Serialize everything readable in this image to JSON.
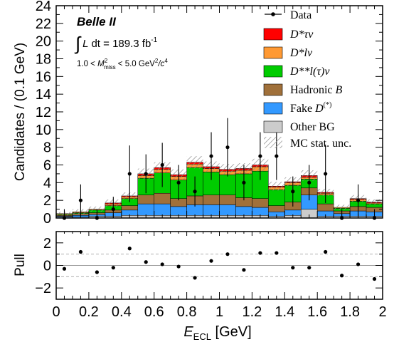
{
  "chart_data": {
    "type": "stacked_histogram_with_pull",
    "colors": {
      "dstar_tau_nu": "#ff0000",
      "dstar_l_nu": "#ff9933",
      "dstarstar_l_nu": "#00cc00",
      "hadronic_b": "#a0703a",
      "fake_d": "#3399ff",
      "other_bg": "#cccccc"
    },
    "main": {
      "ylabel": "Candidates / (0.1 GeV)",
      "ylim": [
        0,
        24
      ],
      "yticks": [
        "0",
        "2",
        "4",
        "6",
        "8",
        "10",
        "12",
        "14",
        "16",
        "18",
        "20",
        "22",
        "24"
      ],
      "bin_centers": [
        0.05,
        0.15,
        0.25,
        0.35,
        0.45,
        0.55,
        0.65,
        0.75,
        0.85,
        0.95,
        1.05,
        1.15,
        1.25,
        1.35,
        1.45,
        1.55,
        1.65,
        1.75,
        1.85,
        1.95
      ],
      "stacks": [
        {
          "key": "other_bg",
          "values": [
            0.1,
            0.1,
            0.2,
            0.2,
            0.3,
            0.3,
            0.3,
            0.3,
            0.3,
            0.3,
            0.3,
            0.3,
            0.3,
            0.2,
            0.3,
            1.0,
            0.2,
            0.2,
            0.2,
            0.2
          ]
        },
        {
          "key": "fake_d",
          "values": [
            0.1,
            0.2,
            0.2,
            0.4,
            0.6,
            1.3,
            1.3,
            1.0,
            1.2,
            1.2,
            1.2,
            1.0,
            0.9,
            0.5,
            0.6,
            1.6,
            0.6,
            0.3,
            0.6,
            0.5
          ]
        },
        {
          "key": "hadronic_b",
          "values": [
            0.1,
            0.2,
            0.2,
            0.3,
            0.5,
            1.0,
            1.2,
            0.9,
            1.0,
            1.1,
            1.1,
            1.0,
            1.0,
            0.7,
            0.9,
            0.8,
            0.8,
            0.3,
            0.5,
            0.5
          ]
        },
        {
          "key": "dstarstar_l_nu",
          "values": [
            0.1,
            0.1,
            0.3,
            0.5,
            0.8,
            1.9,
            2.3,
            2.1,
            3.2,
            2.6,
            2.3,
            2.7,
            3.1,
            1.8,
            1.9,
            1.0,
            1.0,
            0.3,
            0.6,
            0.4
          ]
        },
        {
          "key": "dstar_l_nu",
          "values": [
            0.1,
            0.1,
            0.1,
            0.2,
            0.2,
            0.3,
            0.4,
            0.4,
            0.4,
            0.4,
            0.4,
            0.4,
            0.5,
            0.3,
            0.3,
            0.2,
            0.2,
            0.1,
            0.2,
            0.1
          ]
        },
        {
          "key": "dstar_tau_nu",
          "values": [
            0.0,
            0.0,
            0.0,
            0.1,
            0.1,
            0.2,
            0.2,
            0.2,
            0.2,
            0.2,
            0.2,
            0.2,
            0.2,
            0.1,
            0.1,
            0.2,
            0.1,
            0.0,
            0.1,
            0.1
          ]
        }
      ],
      "mc_unc": [
        0.2,
        0.3,
        0.3,
        0.4,
        0.4,
        0.6,
        0.6,
        0.6,
        0.7,
        0.6,
        0.6,
        0.6,
        0.7,
        0.5,
        0.5,
        0.6,
        0.4,
        0.3,
        0.4,
        0.3
      ],
      "data_points": [
        {
          "x": 0.05,
          "y": 0,
          "err": 1
        },
        {
          "x": 0.15,
          "y": 2,
          "err": 1.8
        },
        {
          "x": 0.25,
          "y": 0,
          "err": 1
        },
        {
          "x": 0.35,
          "y": 1,
          "err": 1.4
        },
        {
          "x": 0.45,
          "y": 5,
          "err": 3.2
        },
        {
          "x": 0.55,
          "y": 5,
          "err": 2.2
        },
        {
          "x": 0.65,
          "y": 6,
          "err": 2.5
        },
        {
          "x": 0.75,
          "y": 4,
          "err": 2
        },
        {
          "x": 0.85,
          "y": 3,
          "err": 1.7
        },
        {
          "x": 0.95,
          "y": 7,
          "err": 2.7
        },
        {
          "x": 1.05,
          "y": 8,
          "err": 3.3
        },
        {
          "x": 1.15,
          "y": 4,
          "err": 2
        },
        {
          "x": 1.25,
          "y": 7,
          "err": 2.7
        },
        {
          "x": 1.35,
          "y": 7,
          "err": 2.7
        },
        {
          "x": 1.45,
          "y": 3,
          "err": 1.7
        },
        {
          "x": 1.55,
          "y": 4,
          "err": 2
        },
        {
          "x": 1.65,
          "y": 5,
          "err": 3.3
        },
        {
          "x": 1.75,
          "y": 0,
          "err": 1
        },
        {
          "x": 1.85,
          "y": 2,
          "err": 1.8
        },
        {
          "x": 1.95,
          "y": 0,
          "err": 1
        }
      ],
      "annotations": {
        "experiment": "Belle II",
        "integral_symbol": "∫",
        "lumi_lhs": "L",
        "lumi_dt": "dt = 189.3 fb",
        "lumi_exp": "-1",
        "cut_prefix": "1.0 < ",
        "cut_var": "M",
        "cut_var_sup": "2",
        "cut_var_sub": "miss",
        "cut_mid": " < 5.0 GeV",
        "cut_unit_sup": "2",
        "cut_unit_tail": "/c",
        "cut_unit_tail_sup": "4"
      },
      "legend": {
        "data": "Data",
        "dstar_tau_nu": "D*τν",
        "dstar_l_nu": "D*lν",
        "dstarstar_l_nu": "D**l(τ)ν",
        "hadronic_b_word": "Hadronic ",
        "hadronic_b_sym": "B",
        "fake_d_word": "Fake ",
        "fake_d_sym": "D",
        "fake_d_sup": "(*)",
        "other_bg": "Other BG",
        "mc_unc": "MC stat. unc."
      }
    },
    "pull": {
      "ylabel": "Pull",
      "ylim": [
        -3,
        3
      ],
      "yticks": [
        "−2",
        "0",
        "2"
      ],
      "reference_lines": [
        -1,
        0,
        1
      ],
      "points": [
        {
          "x": 0.05,
          "y": -0.3
        },
        {
          "x": 0.15,
          "y": 1.2
        },
        {
          "x": 0.25,
          "y": -0.6
        },
        {
          "x": 0.35,
          "y": -0.2
        },
        {
          "x": 0.45,
          "y": 1.5
        },
        {
          "x": 0.55,
          "y": 0.3
        },
        {
          "x": 0.65,
          "y": 0.1
        },
        {
          "x": 0.75,
          "y": -0.1
        },
        {
          "x": 0.85,
          "y": -1.1
        },
        {
          "x": 0.95,
          "y": 0.4
        },
        {
          "x": 1.05,
          "y": 1.0
        },
        {
          "x": 1.15,
          "y": -0.4
        },
        {
          "x": 1.25,
          "y": 1.1
        },
        {
          "x": 1.35,
          "y": 1.1
        },
        {
          "x": 1.45,
          "y": -0.2
        },
        {
          "x": 1.55,
          "y": -0.2
        },
        {
          "x": 1.65,
          "y": 1.2
        },
        {
          "x": 1.75,
          "y": -0.9
        },
        {
          "x": 1.85,
          "y": 0.1
        },
        {
          "x": 1.95,
          "y": -1.2
        }
      ]
    },
    "x_axis": {
      "xlim": [
        0,
        2
      ],
      "xticks": [
        "0",
        "0.2",
        "0.4",
        "0.6",
        "0.8",
        "1",
        "1.2",
        "1.4",
        "1.6",
        "1.8",
        "2"
      ],
      "xlabel_main": "E",
      "xlabel_sub": "ECL",
      "xlabel_unit": " [GeV]"
    }
  }
}
